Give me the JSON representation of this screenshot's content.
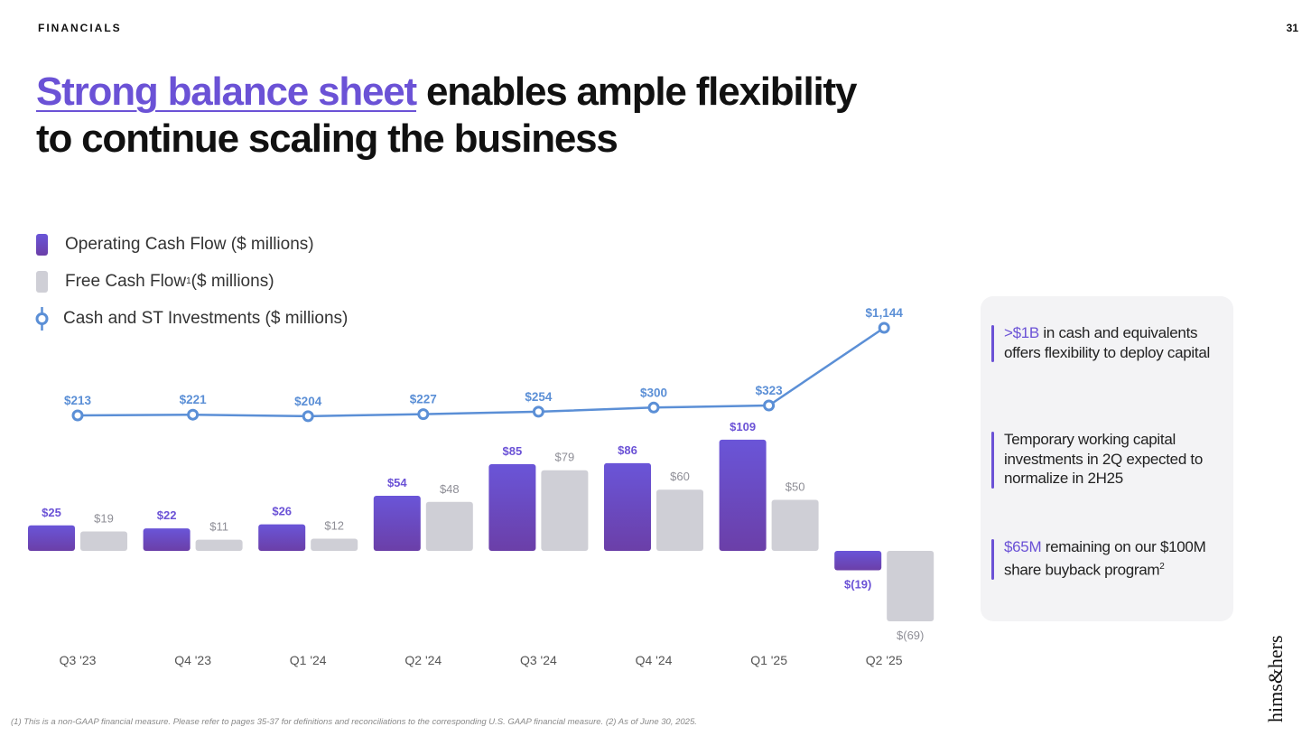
{
  "header": {
    "section": "FINANCIALS",
    "page_number": "31"
  },
  "headline": {
    "highlight": "Strong balance sheet",
    "rest_line1": " enables ample flexibility",
    "line2": "to continue scaling the business"
  },
  "legend": [
    {
      "label": "Operating Cash Flow ($ millions)",
      "swatch": "ocf"
    },
    {
      "label": "Free Cash Flow",
      "sup": "1",
      "suffix": " ($ millions)",
      "swatch": "fcf"
    },
    {
      "label": "Cash and ST Investments ($ millions)",
      "swatch": "line"
    }
  ],
  "colors": {
    "accent": "#6b52d6",
    "ocf_top": "#6a55d8",
    "ocf_bottom": "#6b3fa8",
    "fcf": "#cfcfd6",
    "line": "#5b8fd6"
  },
  "chart_data": {
    "type": "bar",
    "categories": [
      "Q3 '23",
      "Q4 '23",
      "Q1 '24",
      "Q2 '24",
      "Q3 '24",
      "Q4 '24",
      "Q1 '25",
      "Q2 '25"
    ],
    "series": [
      {
        "name": "Operating Cash Flow ($ millions)",
        "type": "bar",
        "values": [
          25,
          22,
          26,
          54,
          85,
          86,
          109,
          -19
        ],
        "labels": [
          "$25",
          "$22",
          "$26",
          "$54",
          "$85",
          "$86",
          "$109",
          "$(19)"
        ]
      },
      {
        "name": "Free Cash Flow ($ millions)",
        "type": "bar",
        "values": [
          19,
          11,
          12,
          48,
          79,
          60,
          50,
          -69
        ],
        "labels": [
          "$19",
          "$11",
          "$12",
          "$48",
          "$79",
          "$60",
          "$50",
          "$(69)"
        ]
      },
      {
        "name": "Cash and ST Investments ($ millions)",
        "type": "line",
        "values": [
          213,
          221,
          204,
          227,
          254,
          300,
          323,
          1144
        ],
        "labels": [
          "$213",
          "$221",
          "$204",
          "$227",
          "$254",
          "$300",
          "$323",
          "$1,144"
        ]
      }
    ],
    "title": "",
    "xlabel": "",
    "ylabel": ""
  },
  "panel": {
    "points": [
      {
        "accent": ">$1B",
        "text": " in cash and equivalents offers flexibility to deploy capital"
      },
      {
        "accent": "",
        "text": "Temporary working capital investments in 2Q expected to normalize in 2H25"
      },
      {
        "accent": "$65M",
        "text": " remaining on our $100M share buyback program",
        "sup": "2"
      }
    ]
  },
  "brand": "hims&hers",
  "footnote": "(1) This is a non-GAAP financial measure. Please refer to pages 35-37 for definitions and reconciliations to the corresponding U.S. GAAP financial measure. (2) As of June 30, 2025."
}
